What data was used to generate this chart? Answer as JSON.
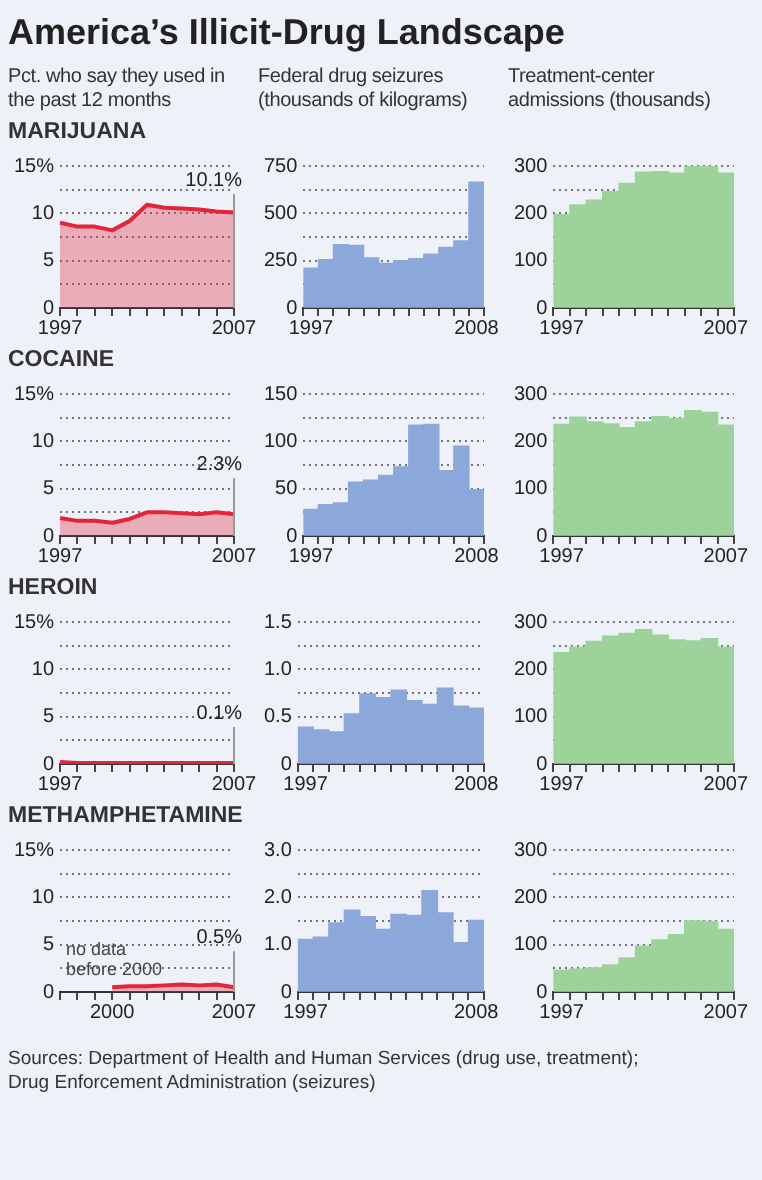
{
  "chart_data": [
    {
      "type": "other",
      "title": "America’s Illicit-Drug Landscape"
    },
    {
      "type": "area",
      "title": "MARIJUANA",
      "ylabel": "Pct. who say they used in the past 12 months",
      "categories": [
        "1997",
        null,
        null,
        null,
        null,
        null,
        null,
        null,
        null,
        null,
        "2007"
      ],
      "values": [
        9.0,
        8.6,
        8.6,
        8.2,
        9.2,
        10.9,
        10.6,
        10.5,
        10.4,
        10.2,
        10.1
      ],
      "color": "#e3243b",
      "ylim": [
        0,
        15
      ],
      "yticks": [
        0,
        {
          "value": 2.5,
          "label": null
        },
        5,
        {
          "value": 7.5,
          "label": null
        },
        10,
        {
          "value": 12.5,
          "label": null
        },
        {
          "value": 15,
          "label": "15%"
        }
      ],
      "grid": "y",
      "annotations": [
        {
          "text": "10.1%",
          "x": "2007",
          "y": 10.1
        }
      ]
    },
    {
      "type": "bar",
      "ylabel": "Federal drug seizures (thousands of kilograms)",
      "categories": [
        "1997",
        null,
        null,
        null,
        null,
        null,
        null,
        null,
        null,
        null,
        null,
        "2008"
      ],
      "values": [
        210,
        255,
        335,
        330,
        265,
        235,
        250,
        260,
        285,
        320,
        355,
        665
      ],
      "color": "#8ca7da",
      "ylim": [
        0,
        750
      ],
      "yticks": [
        0,
        {
          "value": 125,
          "label": null
        },
        250,
        {
          "value": 375,
          "label": null
        },
        500,
        {
          "value": 625,
          "label": null
        },
        750
      ],
      "grid": "y"
    },
    {
      "type": "bar",
      "ylabel": "Treatment-center admissions (thousands)",
      "categories": [
        "1997",
        null,
        null,
        null,
        null,
        null,
        null,
        null,
        null,
        null,
        "2007"
      ],
      "values": [
        197,
        218,
        228,
        246,
        263,
        287,
        288,
        285,
        300,
        300,
        285
      ],
      "color": "#9dd39b",
      "ylim": [
        0,
        300
      ],
      "yticks": [
        0,
        {
          "value": 50,
          "label": null
        },
        100,
        {
          "value": 150,
          "label": null
        },
        200,
        {
          "value": 250,
          "label": null
        },
        300
      ],
      "grid": "y"
    },
    {
      "type": "area",
      "title": "COCAINE",
      "categories": [
        "1997",
        null,
        null,
        null,
        null,
        null,
        null,
        null,
        null,
        null,
        "2007"
      ],
      "values": [
        1.9,
        1.6,
        1.6,
        1.4,
        1.8,
        2.5,
        2.5,
        2.4,
        2.3,
        2.5,
        2.3
      ],
      "color": "#e3243b",
      "ylim": [
        0,
        15
      ],
      "yticks": [
        0,
        {
          "value": 2.5,
          "label": null
        },
        5,
        {
          "value": 7.5,
          "label": null
        },
        10,
        {
          "value": 12.5,
          "label": null
        },
        {
          "value": 15,
          "label": "15%"
        }
      ],
      "grid": "y",
      "annotations": [
        {
          "text": "2.3%",
          "x": "2007",
          "y": 2.3
        }
      ]
    },
    {
      "type": "bar",
      "categories": [
        "1997",
        null,
        null,
        null,
        null,
        null,
        null,
        null,
        null,
        null,
        null,
        "2008"
      ],
      "values": [
        28,
        33,
        35,
        57,
        59,
        64,
        73,
        117,
        118,
        69,
        95,
        49
      ],
      "color": "#8ca7da",
      "ylim": [
        0,
        150
      ],
      "yticks": [
        0,
        {
          "value": 25,
          "label": null
        },
        50,
        {
          "value": 75,
          "label": null
        },
        100,
        {
          "value": 125,
          "label": null
        },
        150
      ],
      "grid": "y"
    },
    {
      "type": "bar",
      "categories": [
        "1997",
        null,
        null,
        null,
        null,
        null,
        null,
        null,
        null,
        null,
        "2007"
      ],
      "values": [
        236,
        251,
        241,
        237,
        229,
        241,
        252,
        248,
        265,
        261,
        234
      ],
      "color": "#9dd39b",
      "ylim": [
        0,
        300
      ],
      "yticks": [
        0,
        {
          "value": 50,
          "label": null
        },
        100,
        {
          "value": 150,
          "label": null
        },
        200,
        {
          "value": 250,
          "label": null
        },
        300
      ],
      "grid": "y"
    },
    {
      "type": "area",
      "title": "HEROIN",
      "categories": [
        "1997",
        null,
        null,
        null,
        null,
        null,
        null,
        null,
        null,
        null,
        "2007"
      ],
      "values": [
        0.2,
        0.1,
        0.1,
        0.1,
        0.1,
        0.1,
        0.1,
        0.1,
        0.1,
        0.1,
        0.1
      ],
      "color": "#e3243b",
      "ylim": [
        0,
        15
      ],
      "yticks": [
        0,
        {
          "value": 2.5,
          "label": null
        },
        5,
        {
          "value": 7.5,
          "label": null
        },
        10,
        {
          "value": 12.5,
          "label": null
        },
        {
          "value": 15,
          "label": "15%"
        }
      ],
      "grid": "y",
      "annotations": [
        {
          "text": "0.1%",
          "x": "2007",
          "y": 0.1
        }
      ]
    },
    {
      "type": "bar",
      "categories": [
        "1997",
        null,
        null,
        null,
        null,
        null,
        null,
        null,
        null,
        null,
        null,
        "2008"
      ],
      "values": [
        0.39,
        0.36,
        0.34,
        0.53,
        0.74,
        0.7,
        0.78,
        0.67,
        0.63,
        0.8,
        0.61,
        0.59
      ],
      "color": "#8ca7da",
      "ylim": [
        0,
        1.5
      ],
      "yticks": [
        0,
        0.5,
        {
          "value": 0.75,
          "label": null
        },
        {
          "value": 1,
          "label": "1.0"
        },
        {
          "value": 1.25,
          "label": null
        },
        1.5
      ],
      "grid": "y"
    },
    {
      "type": "bar",
      "categories": [
        "1997",
        null,
        null,
        null,
        null,
        null,
        null,
        null,
        null,
        null,
        "2007"
      ],
      "values": [
        235,
        247,
        259,
        270,
        276,
        284,
        272,
        262,
        260,
        265,
        247
      ],
      "color": "#9dd39b",
      "ylim": [
        0,
        300
      ],
      "yticks": [
        0,
        {
          "value": 50,
          "label": null
        },
        100,
        {
          "value": 150,
          "label": null
        },
        200,
        {
          "value": 250,
          "label": null
        },
        300
      ],
      "grid": "y"
    },
    {
      "type": "area",
      "title": "METHAMPHETAMINE",
      "categories": [
        null,
        null,
        null,
        "2000",
        null,
        null,
        null,
        null,
        null,
        null,
        "2007"
      ],
      "values": [
        null,
        null,
        null,
        0.5,
        0.6,
        0.6,
        0.7,
        0.8,
        0.7,
        0.8,
        0.5
      ],
      "color": "#e3243b",
      "ylim": [
        0,
        15
      ],
      "yticks": [
        0,
        {
          "value": 2.5,
          "label": null
        },
        5,
        {
          "value": 7.5,
          "label": null
        },
        10,
        {
          "value": 12.5,
          "label": null
        },
        {
          "value": 15,
          "label": "15%"
        }
      ],
      "grid": "y",
      "annotations": [
        "no data before 2000",
        {
          "text": "0.5%",
          "x": "2007",
          "y": 0.5
        }
      ]
    },
    {
      "type": "bar",
      "categories": [
        "1997",
        null,
        null,
        null,
        null,
        null,
        null,
        null,
        null,
        null,
        null,
        "2008"
      ],
      "values": [
        1.11,
        1.16,
        1.46,
        1.73,
        1.59,
        1.32,
        1.64,
        1.62,
        2.14,
        1.67,
        1.04,
        1.51
      ],
      "color": "#8ca7da",
      "ylim": [
        0,
        3
      ],
      "yticks": [
        0,
        {
          "value": 1,
          "label": "1.0"
        },
        {
          "value": 1.5,
          "label": null
        },
        {
          "value": 2,
          "label": "2.0"
        },
        {
          "value": 2.5,
          "label": null
        },
        {
          "value": 3,
          "label": "3.0"
        }
      ],
      "grid": "y"
    },
    {
      "type": "bar",
      "categories": [
        "1997",
        null,
        null,
        null,
        null,
        null,
        null,
        null,
        null,
        null,
        "2007"
      ],
      "values": [
        46,
        48,
        51,
        57,
        72,
        97,
        110,
        121,
        150,
        149,
        132
      ],
      "color": "#9dd39b",
      "ylim": [
        0,
        300
      ],
      "yticks": [
        0,
        {
          "value": 50,
          "label": null
        },
        100,
        {
          "value": 150,
          "label": null
        },
        200,
        {
          "value": 250,
          "label": null
        },
        300
      ],
      "grid": "y"
    },
    {
      "type": "other",
      "annotations": [
        "Sources: Department of Health and Human Services (drug use, treatment); Drug Enforcement Administration (seizures)"
      ]
    }
  ]
}
